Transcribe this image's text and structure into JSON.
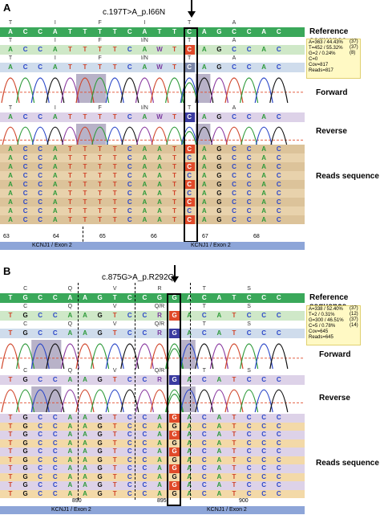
{
  "panel_a": {
    "letter": "A",
    "mutation": "c.197T>A_p.I66N",
    "reference_label": "Reference sequence",
    "forward_label": "Forward",
    "reverse_label": "Reverse",
    "reads_label": "Reads sequence",
    "reference_seq": [
      "A",
      "C",
      "C",
      "A",
      "T",
      "T",
      "T",
      "T",
      "C",
      "A",
      "T",
      "T",
      "C",
      "A",
      "G",
      "C",
      "C",
      "A",
      "C"
    ],
    "ref_aa": [
      "T",
      "",
      "",
      "I",
      "",
      "",
      "F",
      "",
      "",
      "I",
      "",
      "",
      "T",
      "",
      "",
      "A",
      "",
      "",
      ""
    ],
    "fwd_seq": [
      "A",
      "C",
      "C",
      "A",
      "T",
      "T",
      "T",
      "T",
      "C",
      "A",
      "W",
      "T",
      "C",
      "A",
      "G",
      "C",
      "C",
      "A",
      "C"
    ],
    "fwd_aa": [
      "T",
      "",
      "",
      "I",
      "",
      "",
      "F",
      "",
      "",
      "I/N",
      "",
      "",
      "T",
      "",
      "",
      "A",
      "",
      "",
      ""
    ],
    "rev_seq": [
      "A",
      "C",
      "C",
      "A",
      "T",
      "T",
      "T",
      "T",
      "C",
      "A",
      "W",
      "T",
      "C",
      "A",
      "G",
      "C",
      "C",
      "A",
      "C"
    ],
    "rev_aa": [
      "T",
      "",
      "",
      "I",
      "",
      "",
      "F",
      "",
      "",
      "I/N",
      "",
      "",
      "T",
      "",
      "",
      "A",
      "",
      "",
      ""
    ],
    "read_seq": [
      "A",
      "C",
      "C",
      "A",
      "T",
      "T",
      "T",
      "T",
      "C",
      "A",
      "A",
      "T",
      "C",
      "A",
      "G",
      "C",
      "C",
      "A",
      "C"
    ],
    "stats": [
      "A=363 / 44.43%",
      "T=452 / 55.32%",
      "G=2 / 0.24%",
      "C=0",
      "Cov=817",
      "Reads=817"
    ],
    "stats_counts": [
      "(37)",
      "(37)",
      "(8)"
    ],
    "axis_ticks": [
      "63",
      "64",
      "65",
      "66",
      "67",
      "68"
    ],
    "exon_left": "KCNJ1 / Exon 2",
    "exon_right": "KCNJ1 / Exon 2"
  },
  "panel_b": {
    "letter": "B",
    "mutation": "c.875G>A_p.R292Q",
    "reference_label": "Reference sequence",
    "forward_label": "Forward",
    "reverse_label": "Reverse",
    "reads_label": "Reads sequence",
    "reference_seq": [
      "T",
      "G",
      "C",
      "C",
      "A",
      "A",
      "G",
      "T",
      "C",
      "C",
      "G",
      "G",
      "A",
      "C",
      "A",
      "T",
      "C",
      "C",
      "C"
    ],
    "ref_aa": [
      "",
      "C",
      "",
      "",
      "Q",
      "",
      "",
      "V",
      "",
      "",
      "R",
      "",
      "",
      "T",
      "",
      "",
      "S",
      "",
      ""
    ],
    "fwd_seq": [
      "T",
      "G",
      "C",
      "C",
      "A",
      "A",
      "G",
      "T",
      "C",
      "C",
      "R",
      "G",
      "A",
      "C",
      "A",
      "T",
      "C",
      "C",
      "C"
    ],
    "fwd_aa": [
      "",
      "C",
      "",
      "",
      "Q",
      "",
      "",
      "V",
      "",
      "",
      "Q/R",
      "",
      "",
      "T",
      "",
      "",
      "S",
      "",
      ""
    ],
    "rev_seq": [
      "T",
      "G",
      "C",
      "C",
      "A",
      "A",
      "G",
      "T",
      "C",
      "C",
      "R",
      "G",
      "A",
      "C",
      "A",
      "T",
      "C",
      "C",
      "C"
    ],
    "rev_aa": [
      "",
      "C",
      "",
      "",
      "Q",
      "",
      "",
      "V",
      "",
      "",
      "Q/R",
      "",
      "",
      "T",
      "",
      "",
      "S",
      "",
      ""
    ],
    "read_seq": [
      "T",
      "G",
      "C",
      "C",
      "A",
      "A",
      "G",
      "T",
      "C",
      "C",
      "A",
      "G",
      "A",
      "C",
      "A",
      "T",
      "C",
      "C",
      "C"
    ],
    "stats": [
      "A=338 / 52.40%",
      "T=2 / 0.31%",
      "G=300 / 46.51%",
      "C=5 / 0.78%",
      "Cov=645",
      "Reads=645"
    ],
    "stats_counts": [
      "(37)",
      "(12)",
      "(37)",
      "(14)"
    ],
    "axis_ticks": [
      "890",
      "895",
      "900"
    ],
    "exon_left": "KCNJ1 / Exon 2",
    "exon_right": "KCNJ1 / Exon 2"
  },
  "colors": {
    "ref_bar": "#3aa85a",
    "A": "#2e9a3a",
    "C": "#2b47c8",
    "G": "#111111",
    "T": "#d0452a",
    "mutant": "#e04a2a",
    "mutant_b": "#3a3aa0",
    "axis": "#8da5d8"
  }
}
